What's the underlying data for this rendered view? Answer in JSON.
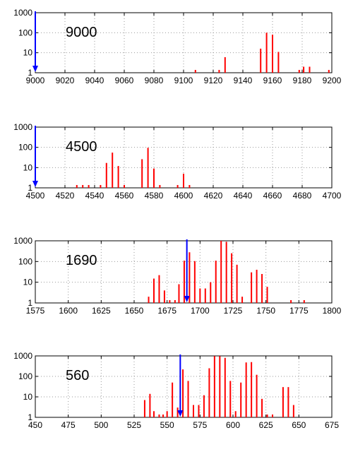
{
  "chart_data": [
    {
      "type": "bar",
      "label": "9000",
      "xlim": [
        9000,
        9200
      ],
      "xticks": [
        9000,
        9020,
        9040,
        9060,
        9080,
        9100,
        9120,
        9140,
        9160,
        9180,
        9200
      ],
      "y_scale": "log",
      "ylim": [
        1,
        1000
      ],
      "yticks": [
        1,
        10,
        100,
        1000
      ],
      "grid": true,
      "bar_color": "#ff0000",
      "marker_color": "#0000ff",
      "marker_x": 9000,
      "bars": [
        {
          "x": 9108,
          "y": 1
        },
        {
          "x": 9124,
          "y": 1
        },
        {
          "x": 9128,
          "y": 6
        },
        {
          "x": 9152,
          "y": 16
        },
        {
          "x": 9156,
          "y": 100
        },
        {
          "x": 9160,
          "y": 80
        },
        {
          "x": 9164,
          "y": 11
        },
        {
          "x": 9178,
          "y": 1
        },
        {
          "x": 9181,
          "y": 2
        },
        {
          "x": 9185,
          "y": 2
        },
        {
          "x": 9198,
          "y": 1
        }
      ]
    },
    {
      "type": "bar",
      "label": "4500",
      "xlim": [
        4500,
        4700
      ],
      "xticks": [
        4500,
        4520,
        4540,
        4560,
        4580,
        4600,
        4620,
        4640,
        4660,
        4680,
        4700
      ],
      "y_scale": "log",
      "ylim": [
        1,
        1000
      ],
      "yticks": [
        1,
        10,
        100,
        1000
      ],
      "grid": true,
      "bar_color": "#ff0000",
      "marker_color": "#0000ff",
      "marker_x": 4500,
      "bars": [
        {
          "x": 4528,
          "y": 1
        },
        {
          "x": 4532,
          "y": 1
        },
        {
          "x": 4536,
          "y": 1
        },
        {
          "x": 4544,
          "y": 1
        },
        {
          "x": 4548,
          "y": 17
        },
        {
          "x": 4552,
          "y": 55
        },
        {
          "x": 4556,
          "y": 12
        },
        {
          "x": 4560,
          "y": 1
        },
        {
          "x": 4572,
          "y": 26
        },
        {
          "x": 4576,
          "y": 95
        },
        {
          "x": 4580,
          "y": 9
        },
        {
          "x": 4584,
          "y": 1
        },
        {
          "x": 4596,
          "y": 1
        },
        {
          "x": 4600,
          "y": 5
        },
        {
          "x": 4604,
          "y": 1
        }
      ]
    },
    {
      "type": "bar",
      "label": "1690",
      "xlim": [
        1575,
        1800
      ],
      "xticks": [
        1575,
        1600,
        1625,
        1650,
        1675,
        1700,
        1725,
        1750,
        1775,
        1800
      ],
      "y_scale": "log",
      "ylim": [
        1,
        1000
      ],
      "yticks": [
        1,
        10,
        100,
        1000
      ],
      "grid": true,
      "bar_color": "#ff0000",
      "marker_color": "#0000ff",
      "marker_x": 1690,
      "bars": [
        {
          "x": 1661,
          "y": 2
        },
        {
          "x": 1665,
          "y": 15
        },
        {
          "x": 1669,
          "y": 22
        },
        {
          "x": 1673,
          "y": 4
        },
        {
          "x": 1677,
          "y": 1
        },
        {
          "x": 1681,
          "y": 1
        },
        {
          "x": 1684,
          "y": 8
        },
        {
          "x": 1688,
          "y": 110
        },
        {
          "x": 1692,
          "y": 280
        },
        {
          "x": 1696,
          "y": 105
        },
        {
          "x": 1700,
          "y": 5
        },
        {
          "x": 1704,
          "y": 5
        },
        {
          "x": 1708,
          "y": 10
        },
        {
          "x": 1712,
          "y": 110
        },
        {
          "x": 1716,
          "y": 1000
        },
        {
          "x": 1720,
          "y": 900
        },
        {
          "x": 1724,
          "y": 250
        },
        {
          "x": 1728,
          "y": 70
        },
        {
          "x": 1732,
          "y": 2
        },
        {
          "x": 1739,
          "y": 30
        },
        {
          "x": 1743,
          "y": 40
        },
        {
          "x": 1747,
          "y": 25
        },
        {
          "x": 1751,
          "y": 6
        },
        {
          "x": 1769,
          "y": 1
        },
        {
          "x": 1779,
          "y": 1
        }
      ]
    },
    {
      "type": "bar",
      "label": "560",
      "xlim": [
        450,
        675
      ],
      "xticks": [
        450,
        475,
        500,
        525,
        550,
        575,
        600,
        625,
        650,
        675
      ],
      "y_scale": "log",
      "ylim": [
        1,
        1000
      ],
      "yticks": [
        1,
        10,
        100,
        1000
      ],
      "grid": true,
      "bar_color": "#ff0000",
      "marker_color": "#0000ff",
      "marker_x": 560,
      "bars": [
        {
          "x": 533,
          "y": 7
        },
        {
          "x": 537,
          "y": 14
        },
        {
          "x": 540,
          "y": 2
        },
        {
          "x": 544,
          "y": 1
        },
        {
          "x": 547,
          "y": 1
        },
        {
          "x": 550,
          "y": 2
        },
        {
          "x": 554,
          "y": 50
        },
        {
          "x": 558,
          "y": 3
        },
        {
          "x": 562,
          "y": 220
        },
        {
          "x": 566,
          "y": 60
        },
        {
          "x": 570,
          "y": 4
        },
        {
          "x": 574,
          "y": 4
        },
        {
          "x": 578,
          "y": 12
        },
        {
          "x": 582,
          "y": 250
        },
        {
          "x": 586,
          "y": 980
        },
        {
          "x": 590,
          "y": 980
        },
        {
          "x": 594,
          "y": 800
        },
        {
          "x": 598,
          "y": 60
        },
        {
          "x": 602,
          "y": 2
        },
        {
          "x": 606,
          "y": 50
        },
        {
          "x": 610,
          "y": 480
        },
        {
          "x": 614,
          "y": 500
        },
        {
          "x": 618,
          "y": 120
        },
        {
          "x": 622,
          "y": 8
        },
        {
          "x": 626,
          "y": 1
        },
        {
          "x": 630,
          "y": 1
        },
        {
          "x": 638,
          "y": 30
        },
        {
          "x": 642,
          "y": 30
        },
        {
          "x": 646,
          "y": 4
        }
      ]
    }
  ]
}
